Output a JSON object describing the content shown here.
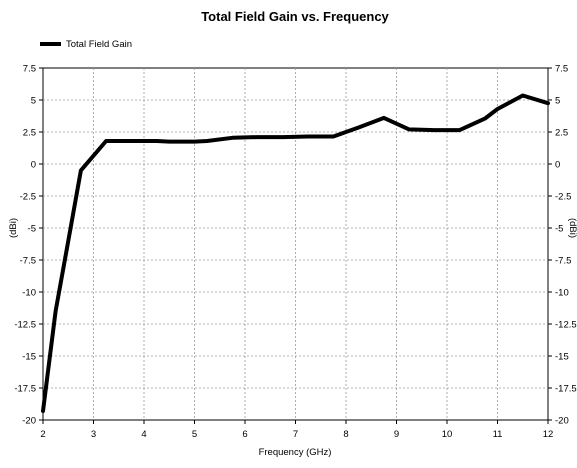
{
  "chart_data": {
    "type": "line",
    "title": "Total Field Gain vs. Frequency",
    "xlabel": "Frequency (GHz)",
    "ylabel_left": "(dBi)",
    "ylabel_right": "(dBi)",
    "xlim": [
      2,
      12
    ],
    "ylim": [
      -20,
      7.5
    ],
    "x_ticks": [
      2,
      3,
      4,
      5,
      6,
      7,
      8,
      9,
      10,
      11,
      12
    ],
    "y_ticks": [
      7.5,
      5,
      2.5,
      0,
      -2.5,
      -5,
      -7.5,
      -10,
      -12.5,
      -15,
      -17.5,
      -20
    ],
    "grid": true,
    "legend_position": "top-left",
    "series": [
      {
        "name": "Total Field Gain",
        "color": "#000000",
        "x": [
          2.0,
          2.25,
          2.5,
          2.75,
          3.25,
          3.75,
          4.25,
          4.5,
          5.0,
          5.25,
          5.75,
          6.25,
          6.75,
          7.25,
          7.75,
          8.25,
          8.75,
          9.25,
          9.75,
          10.0,
          10.25,
          10.75,
          11.0,
          11.5,
          12.0
        ],
        "y": [
          -19.3,
          -11.5,
          -6.0,
          -0.5,
          1.8,
          1.8,
          1.8,
          1.75,
          1.75,
          1.8,
          2.05,
          2.1,
          2.1,
          2.15,
          2.15,
          2.85,
          3.6,
          2.7,
          2.65,
          2.65,
          2.65,
          3.55,
          4.3,
          5.35,
          4.75
        ]
      }
    ]
  }
}
